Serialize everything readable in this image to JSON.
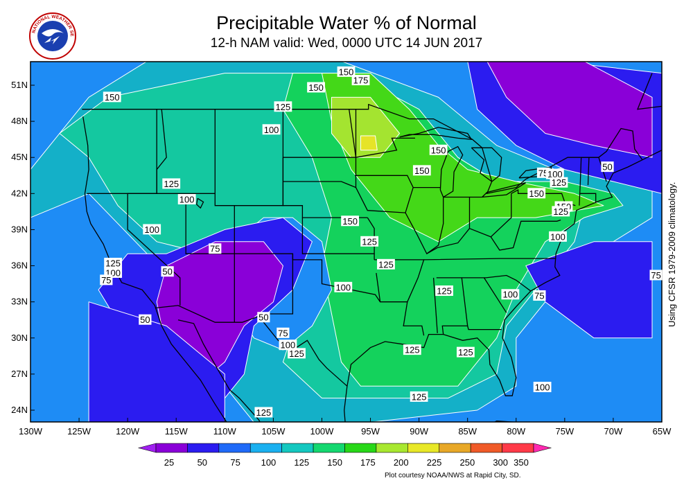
{
  "header": {
    "title": "Precipitable Water % of Normal",
    "subtitle": "12-h NAM valid: Wed, 0000 UTC 14 JUN 2017",
    "logo_text": "NATIONAL WEATHER SERVICE"
  },
  "side_note": "Using CFSR 1979-2009 climatology.",
  "credit": "Plot courtesy NOAA/NWS at Rapid City, SD.",
  "map": {
    "lat_labels": [
      "51N",
      "48N",
      "45N",
      "42N",
      "39N",
      "36N",
      "33N",
      "30N",
      "27N",
      "24N"
    ],
    "lon_labels": [
      "130W",
      "125W",
      "120W",
      "115W",
      "110W",
      "105W",
      "100W",
      "95W",
      "90W",
      "85W",
      "80W",
      "75W",
      "70W",
      "65W"
    ],
    "contour_labels": [
      {
        "text": "150",
        "lon": -97.5,
        "lat": 52.1
      },
      {
        "text": "175",
        "lon": -96.0,
        "lat": 51.4
      },
      {
        "text": "150",
        "lon": -100.6,
        "lat": 50.8
      },
      {
        "text": "150",
        "lon": -121.6,
        "lat": 50.0
      },
      {
        "text": "125",
        "lon": -104.0,
        "lat": 49.2
      },
      {
        "text": "100",
        "lon": -105.2,
        "lat": 47.3
      },
      {
        "text": "150",
        "lon": -88.0,
        "lat": 45.6
      },
      {
        "text": "150",
        "lon": -89.7,
        "lat": 43.9
      },
      {
        "text": "75",
        "lon": -77.2,
        "lat": 43.7
      },
      {
        "text": "100",
        "lon": -76.0,
        "lat": 43.6
      },
      {
        "text": "50",
        "lon": -70.6,
        "lat": 44.2
      },
      {
        "text": "125",
        "lon": -75.6,
        "lat": 42.9
      },
      {
        "text": "150",
        "lon": -77.9,
        "lat": 42.0
      },
      {
        "text": "150",
        "lon": -75.1,
        "lat": 40.9
      },
      {
        "text": "125",
        "lon": -75.4,
        "lat": 40.5
      },
      {
        "text": "100",
        "lon": -75.7,
        "lat": 38.4
      },
      {
        "text": "125",
        "lon": -115.5,
        "lat": 42.8
      },
      {
        "text": "100",
        "lon": -113.9,
        "lat": 41.5
      },
      {
        "text": "100",
        "lon": -117.5,
        "lat": 39.0
      },
      {
        "text": "150",
        "lon": -97.1,
        "lat": 39.7
      },
      {
        "text": "125",
        "lon": -95.1,
        "lat": 38.0
      },
      {
        "text": "75",
        "lon": -111.0,
        "lat": 37.4
      },
      {
        "text": "125",
        "lon": -121.5,
        "lat": 36.2
      },
      {
        "text": "100",
        "lon": -121.5,
        "lat": 35.4
      },
      {
        "text": "75",
        "lon": -122.2,
        "lat": 34.8
      },
      {
        "text": "50",
        "lon": -115.9,
        "lat": 35.5
      },
      {
        "text": "125",
        "lon": -93.4,
        "lat": 36.1
      },
      {
        "text": "100",
        "lon": -97.8,
        "lat": 34.2
      },
      {
        "text": "125",
        "lon": -87.4,
        "lat": 33.9
      },
      {
        "text": "100",
        "lon": -80.6,
        "lat": 33.6
      },
      {
        "text": "75",
        "lon": -77.6,
        "lat": 33.5
      },
      {
        "text": "75",
        "lon": -65.6,
        "lat": 35.2
      },
      {
        "text": "50",
        "lon": -118.2,
        "lat": 31.5
      },
      {
        "text": "50",
        "lon": -106.0,
        "lat": 31.7
      },
      {
        "text": "75",
        "lon": -104.0,
        "lat": 30.4
      },
      {
        "text": "100",
        "lon": -103.5,
        "lat": 29.4
      },
      {
        "text": "125",
        "lon": -102.6,
        "lat": 28.7
      },
      {
        "text": "125",
        "lon": -90.7,
        "lat": 29.0
      },
      {
        "text": "125",
        "lon": -85.2,
        "lat": 28.8
      },
      {
        "text": "100",
        "lon": -77.3,
        "lat": 25.9
      },
      {
        "text": "125",
        "lon": -90.0,
        "lat": 25.1
      },
      {
        "text": "125",
        "lon": -106.0,
        "lat": 23.8
      }
    ]
  },
  "legend": {
    "values": [
      "25",
      "50",
      "75",
      "100",
      "125",
      "150",
      "175",
      "200",
      "225",
      "250",
      "300",
      "350"
    ],
    "colors": [
      "#a020f0",
      "#8a00d8",
      "#2b1cf0",
      "#1f6af8",
      "#1ab0f0",
      "#14c8c0",
      "#14d870",
      "#28d818",
      "#a8e830",
      "#e8e828",
      "#e8a828",
      "#f05a28",
      "#ff3a48",
      "#ff2ab0"
    ]
  }
}
